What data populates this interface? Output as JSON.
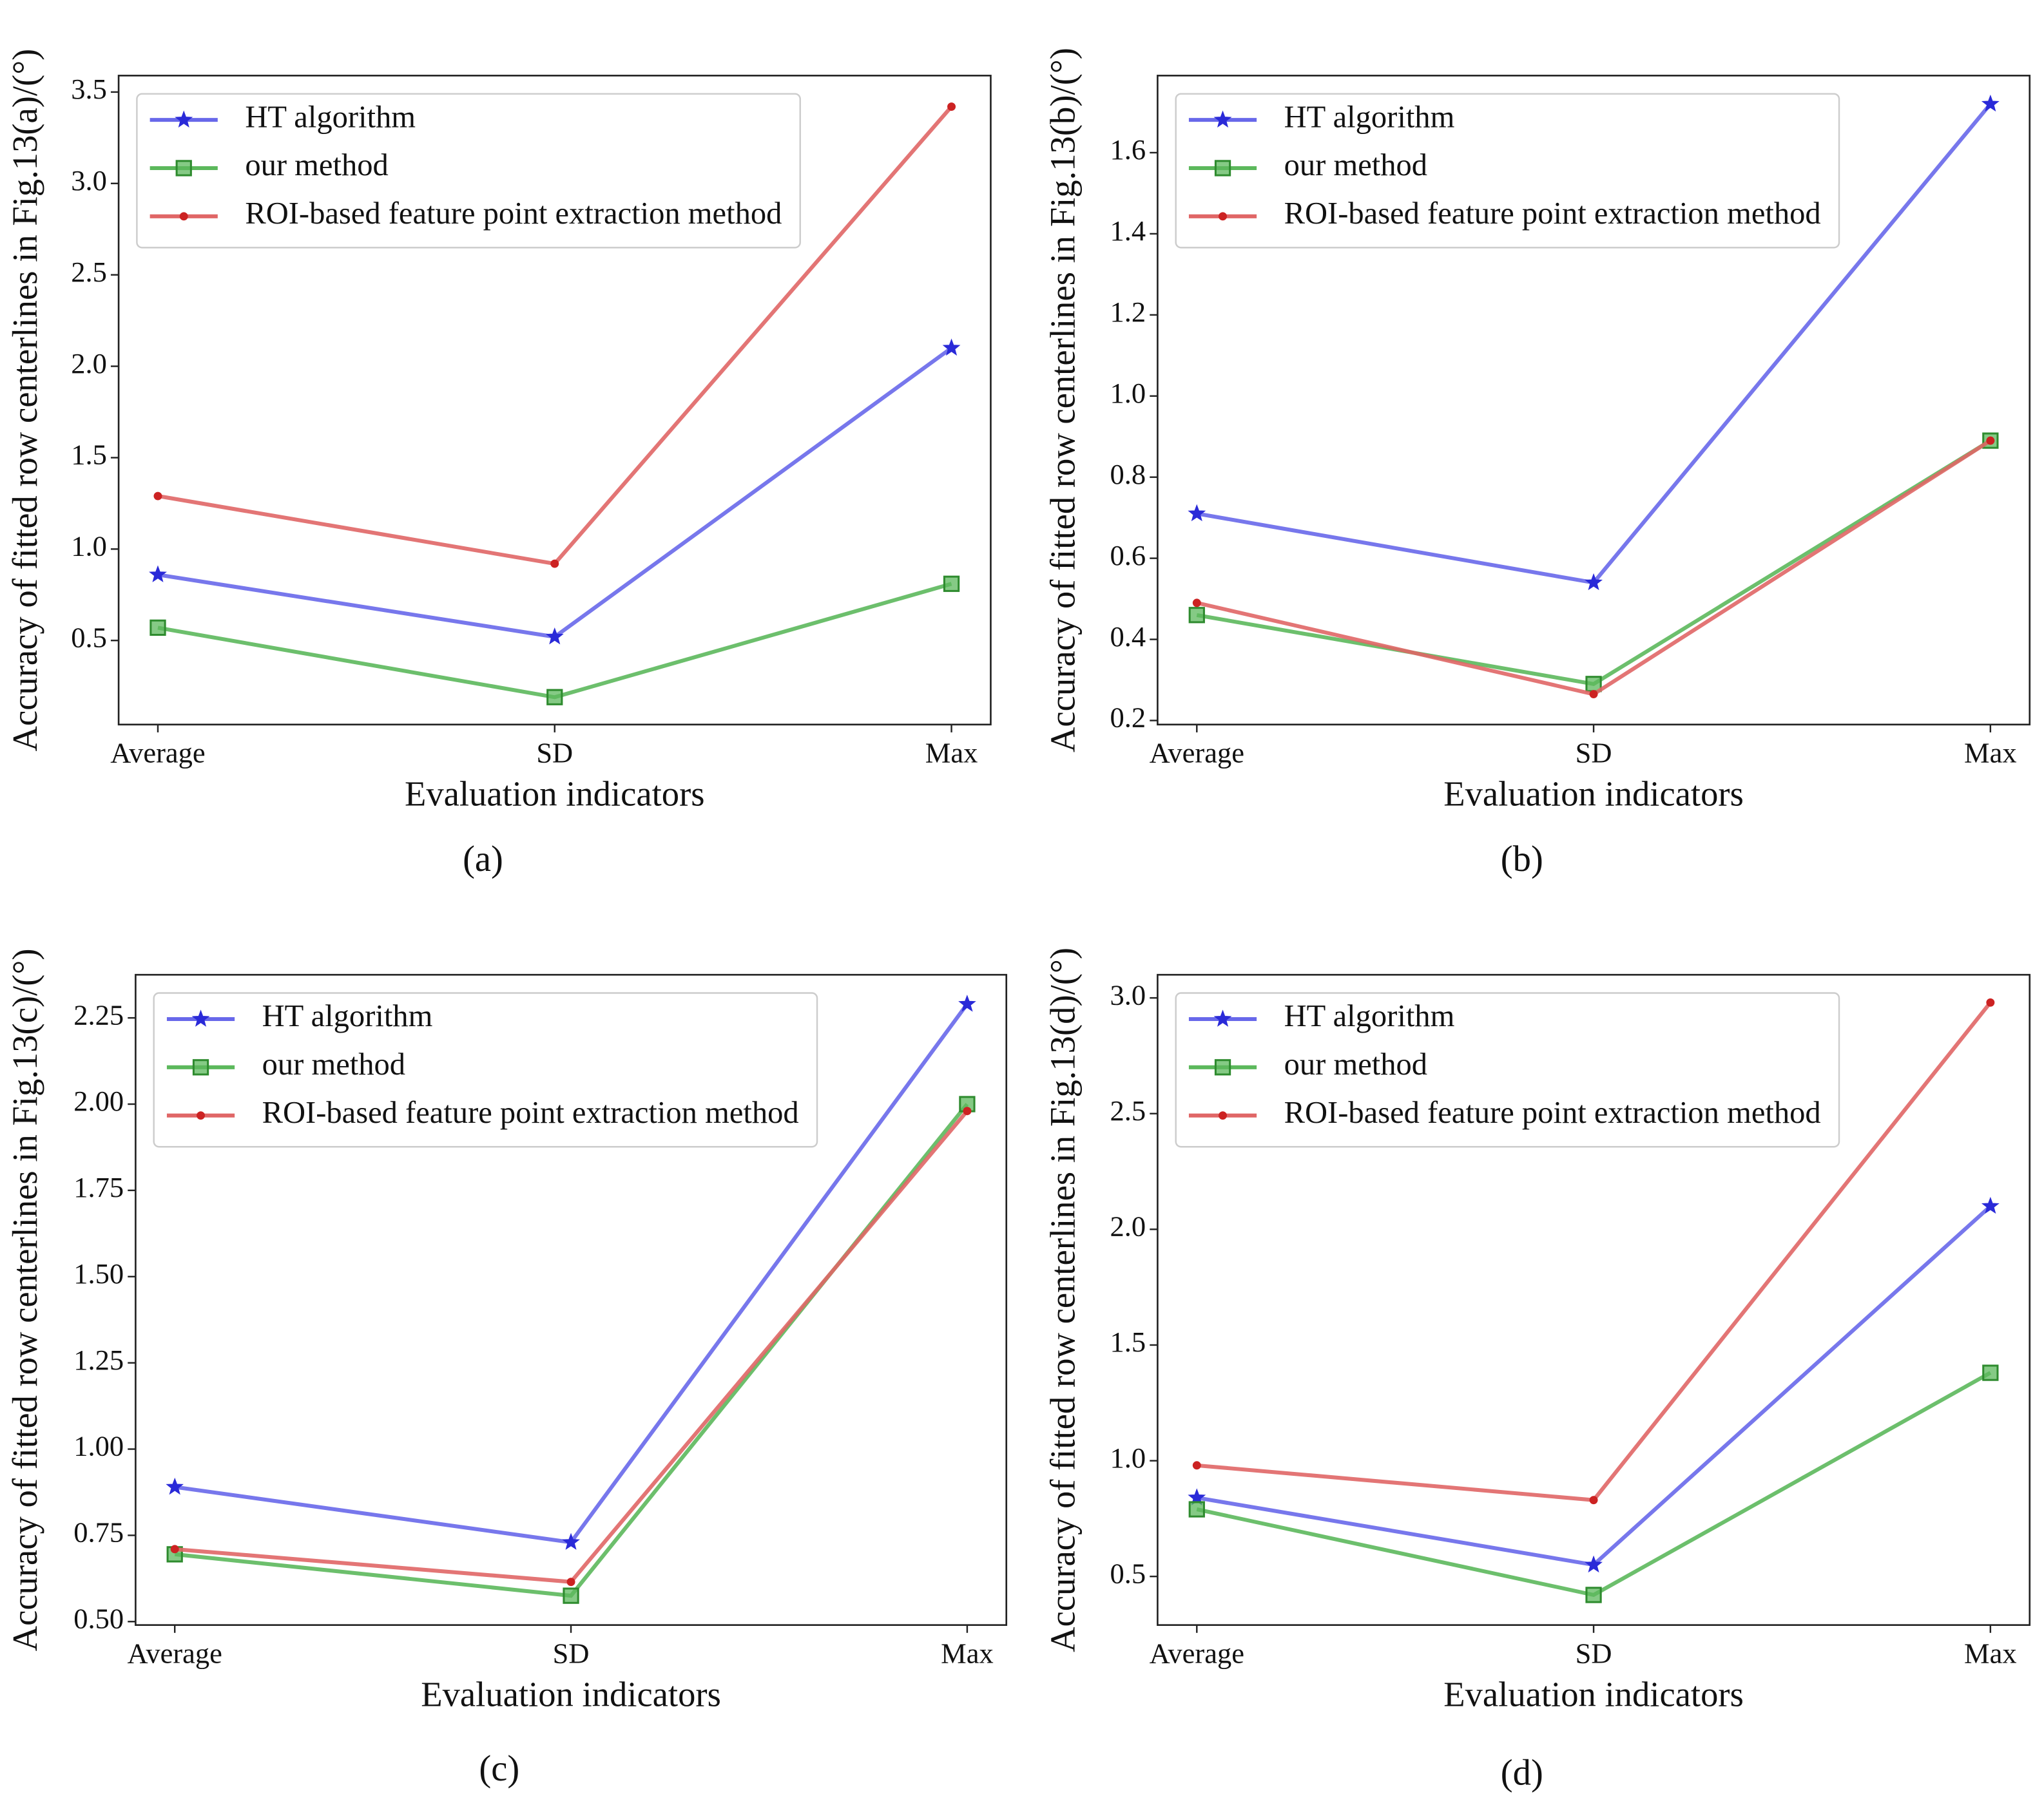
{
  "chart_data": [
    {
      "type": "line",
      "caption": "(a)",
      "xlabel": "Evaluation indicators",
      "ylabel": "Accuracy of fitted row centerlines in Fig.13(a)/(°)",
      "categories": [
        "Average",
        "SD",
        "Max"
      ],
      "legend": "upper left",
      "ylim": [
        0.04,
        3.59
      ],
      "yticks": [
        0.5,
        {
          "value": 1.0,
          "label": "1.0"
        },
        1.5,
        {
          "value": 2.0,
          "label": "2.0"
        },
        2.5,
        {
          "value": 3.0,
          "label": "3.0"
        },
        3.5
      ],
      "series": [
        {
          "name": "HT algorithm",
          "color": "#6868ea",
          "marker": "star",
          "values": [
            0.86,
            0.52,
            2.1
          ]
        },
        {
          "name": "our method",
          "color": "#5cb85c",
          "marker": "square",
          "values": [
            0.57,
            0.19,
            0.81
          ]
        },
        {
          "name": "ROI-based feature point extraction method",
          "color": "#e06666",
          "marker": "dot",
          "values": [
            1.29,
            0.92,
            3.42
          ]
        }
      ]
    },
    {
      "type": "line",
      "caption": "(b)",
      "xlabel": "Evaluation indicators",
      "ylabel": "Accuracy of fitted row centerlines in Fig.13(b)/(°)",
      "categories": [
        "Average",
        "SD",
        "Max"
      ],
      "legend": "upper left",
      "ylim": [
        0.19,
        1.79
      ],
      "yticks": [
        0.2,
        0.4,
        0.6,
        0.8,
        {
          "value": 1.0,
          "label": "1.0"
        },
        1.2,
        1.4,
        1.6
      ],
      "series": [
        {
          "name": "HT algorithm",
          "color": "#6868ea",
          "marker": "star",
          "values": [
            0.71,
            0.54,
            1.72
          ]
        },
        {
          "name": "our method",
          "color": "#5cb85c",
          "marker": "square",
          "values": [
            0.46,
            0.29,
            0.89
          ]
        },
        {
          "name": "ROI-based feature point extraction method",
          "color": "#e06666",
          "marker": "dot",
          "values": [
            0.49,
            0.265,
            0.89
          ]
        }
      ]
    },
    {
      "type": "line",
      "caption": "(c)",
      "xlabel": "Evaluation indicators",
      "ylabel": "Accuracy of fitted row centerlines in Fig.13(c)/(°)",
      "categories": [
        "Average",
        "SD",
        "Max"
      ],
      "legend": "upper left",
      "ylim": [
        0.49,
        2.375
      ],
      "yticks": [
        {
          "value": 0.5,
          "label": "0.50"
        },
        0.75,
        {
          "value": 1.0,
          "label": "1.00"
        },
        1.25,
        {
          "value": 1.5,
          "label": "1.50"
        },
        1.75,
        {
          "value": 2.0,
          "label": "2.00"
        },
        2.25
      ],
      "series": [
        {
          "name": "HT algorithm",
          "color": "#6868ea",
          "marker": "star",
          "values": [
            0.89,
            0.73,
            2.29
          ]
        },
        {
          "name": "our method",
          "color": "#5cb85c",
          "marker": "square",
          "values": [
            0.695,
            0.575,
            2.0
          ]
        },
        {
          "name": "ROI-based feature point extraction method",
          "color": "#e06666",
          "marker": "dot",
          "values": [
            0.71,
            0.615,
            1.98
          ]
        }
      ]
    },
    {
      "type": "line",
      "caption": "(d)",
      "xlabel": "Evaluation indicators",
      "ylabel": "Accuracy of fitted row centerlines in Fig.13(d)/(°)",
      "categories": [
        "Average",
        "SD",
        "Max"
      ],
      "legend": "upper left",
      "ylim": [
        0.29,
        3.1
      ],
      "yticks": [
        0.5,
        {
          "value": 1.0,
          "label": "1.0"
        },
        1.5,
        {
          "value": 2.0,
          "label": "2.0"
        },
        2.5,
        {
          "value": 3.0,
          "label": "3.0"
        }
      ],
      "series": [
        {
          "name": "HT algorithm",
          "color": "#6868ea",
          "marker": "star",
          "values": [
            0.84,
            0.55,
            2.1
          ]
        },
        {
          "name": "our method",
          "color": "#5cb85c",
          "marker": "square",
          "values": [
            0.79,
            0.42,
            1.38
          ]
        },
        {
          "name": "ROI-based feature point extraction method",
          "color": "#e06666",
          "marker": "dot",
          "values": [
            0.98,
            0.83,
            2.98
          ]
        }
      ]
    }
  ]
}
